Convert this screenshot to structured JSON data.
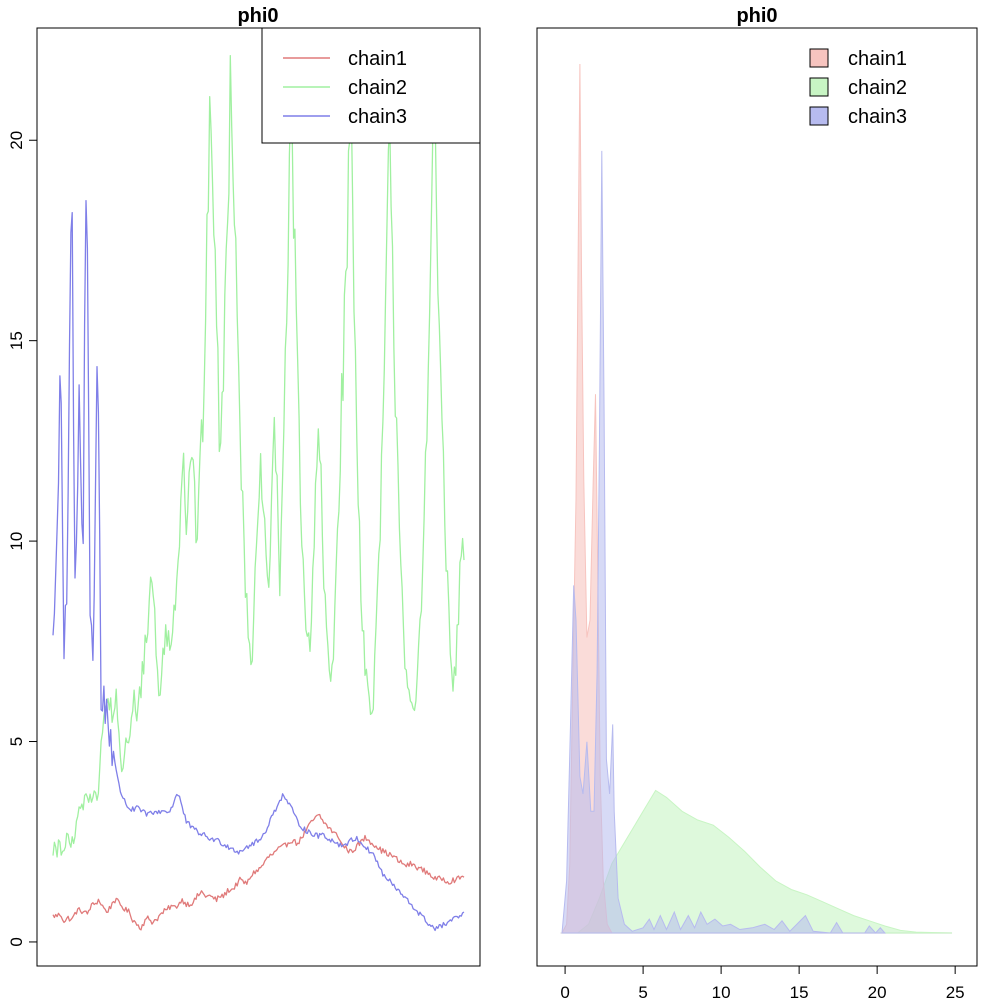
{
  "chart_data": [
    {
      "type": "line",
      "title": "phi0",
      "xlabel": "",
      "ylabel": "",
      "ylim": [
        -0.6,
        22.8
      ],
      "y_ticks": [
        "0",
        "5",
        "10",
        "15",
        "20"
      ],
      "grid": false,
      "x_axis_shown": false,
      "legend": {
        "placement": "top-right",
        "boxed": true,
        "entries": [
          "chain1",
          "chain2",
          "chain3"
        ]
      },
      "series": [
        {
          "name": "chain1",
          "color": "#e07a7a",
          "samples": 300,
          "y": [
            0.65,
            0.65,
            0.7,
            0.5,
            0.6,
            0.55,
            0.75,
            0.8,
            0.75,
            0.7,
            0.9,
            0.95,
            1.05,
            0.9,
            0.75,
            0.85,
            1.05,
            1.0,
            0.9,
            0.8,
            0.75,
            0.55,
            0.45,
            0.35,
            0.5,
            0.6,
            0.5,
            0.55,
            0.65,
            0.75,
            0.8,
            0.9,
            0.85,
            0.95,
            1.05,
            0.95,
            0.95,
            1.0,
            1.15,
            1.25,
            1.15,
            1.15,
            1.1,
            1.05,
            1.15,
            1.15,
            1.3,
            1.3,
            1.4,
            1.55,
            1.5,
            1.45,
            1.65,
            1.75,
            1.8,
            1.9,
            2.05,
            2.15,
            2.2,
            2.3,
            2.35,
            2.4,
            2.5,
            2.55,
            2.45,
            2.55,
            2.7,
            2.85,
            3.0,
            3.1,
            3.15,
            3.0,
            2.9,
            2.8,
            2.7,
            2.65,
            2.4,
            2.35,
            2.25,
            2.3,
            2.4,
            2.5,
            2.6,
            2.55,
            2.45,
            2.4,
            2.3,
            2.25,
            2.2,
            2.15,
            2.1,
            2.0,
            1.95,
            1.9,
            1.95,
            1.9,
            1.85,
            1.8,
            1.75,
            1.7,
            1.6,
            1.55,
            1.6,
            1.55,
            1.5,
            1.55,
            1.55,
            1.6,
            1.65
          ]
        },
        {
          "name": "chain2",
          "color": "#a0f0a0",
          "samples": 300,
          "y": [
            2.3,
            2.4,
            2.1,
            2.5,
            2.2,
            2.4,
            2.3,
            2.6,
            2.5,
            2.4,
            2.6,
            2.7,
            3.0,
            3.5,
            3.2,
            3.4,
            3.6,
            3.8,
            3.6,
            3.7,
            3.9,
            3.5,
            3.7,
            4.2,
            5.0,
            5.5,
            6.0,
            5.8,
            6.2,
            5.5,
            5.8,
            6.3,
            5.2,
            4.8,
            4.3,
            4.6,
            5.0,
            4.7,
            5.2,
            5.6,
            6.0,
            5.5,
            6.2,
            6.0,
            6.8,
            7.2,
            7.5,
            8.0,
            8.8,
            9.2,
            8.5,
            7.0,
            6.5,
            6.2,
            6.8,
            7.5,
            8.0,
            7.5,
            7.0,
            7.8,
            8.5,
            9.0,
            10.0,
            11.0,
            12.3,
            11.5,
            10.5,
            11.5,
            12.5,
            12.0,
            11.0,
            10.0,
            11.0,
            12.0,
            13.0,
            15.0,
            17.0,
            19.0,
            21.5,
            19.0,
            17.0,
            15.0,
            13.0,
            12.0,
            14.0,
            16.0,
            18.0,
            20.0,
            22.0,
            20.0,
            18.0,
            16.0,
            14.0,
            12.0,
            10.0,
            9.0,
            8.5,
            7.5,
            7.0,
            8.0,
            9.0,
            10.0,
            11.0,
            12.0,
            10.5,
            9.5,
            8.5,
            9.5,
            11.0,
            13.0,
            12.0,
            10.5,
            9.0,
            11.0,
            13.0,
            15.0,
            17.0,
            19.0,
            20.5,
            18.0,
            16.0,
            14.0,
            12.0,
            10.0,
            9.0,
            8.0,
            7.5,
            7.0,
            8.5,
            10.0,
            11.5,
            13.0,
            12.0,
            10.0,
            8.5,
            8.0,
            7.0,
            6.5,
            7.0,
            8.0,
            9.5,
            11.0,
            12.5,
            14.0,
            15.5,
            17.0,
            19.0,
            21.0,
            18.0,
            15.5,
            13.0,
            11.0,
            9.0,
            8.0,
            7.0,
            6.5,
            6.0,
            5.5,
            6.0,
            7.0,
            8.0,
            9.5,
            11.0,
            13.0,
            15.0,
            17.5,
            20.0,
            18.0,
            16.0,
            14.0,
            12.5,
            11.0,
            9.5,
            8.0,
            7.0,
            6.5,
            6.0,
            5.7,
            5.5,
            6.0,
            6.5,
            7.5,
            8.5,
            10.0,
            12.0,
            14.0,
            16.5,
            18.5,
            21.0,
            19.0,
            17.0,
            15.0,
            13.0,
            11.5,
            10.0,
            8.5,
            7.5,
            6.5,
            6.3,
            7.0,
            8.0,
            9.0,
            10.0,
            9.5
          ]
        },
        {
          "name": "chain3",
          "color": "#7f7fe8",
          "samples": 300,
          "y": [
            7.7,
            9.3,
            15.3,
            7.2,
            9.5,
            19.9,
            7.5,
            13.8,
            8.8,
            19.9,
            9.0,
            7.3,
            15.5,
            6.0,
            6.0,
            5.5,
            5.0,
            4.3,
            3.8,
            3.6,
            3.4,
            3.3,
            3.3,
            3.35,
            3.25,
            3.2,
            3.2,
            3.2,
            3.25,
            3.25,
            3.3,
            3.2,
            3.35,
            3.6,
            3.7,
            3.3,
            3.0,
            2.9,
            2.8,
            2.75,
            2.7,
            2.65,
            2.6,
            2.55,
            2.55,
            2.5,
            2.45,
            2.4,
            2.35,
            2.3,
            2.25,
            2.3,
            2.35,
            2.4,
            2.45,
            2.5,
            2.55,
            2.7,
            2.9,
            3.1,
            3.3,
            3.5,
            3.65,
            3.55,
            3.4,
            3.2,
            3.0,
            2.9,
            2.8,
            2.75,
            2.7,
            2.65,
            2.65,
            2.7,
            2.6,
            2.55,
            2.5,
            2.45,
            2.4,
            2.45,
            2.5,
            2.55,
            2.6,
            2.5,
            2.4,
            2.3,
            2.25,
            2.1,
            1.9,
            1.7,
            1.6,
            1.5,
            1.4,
            1.3,
            1.2,
            1.1,
            1.0,
            0.9,
            0.8,
            0.7,
            0.6,
            0.5,
            0.4,
            0.35,
            0.35,
            0.4,
            0.45,
            0.5,
            0.55,
            0.6,
            0.65,
            0.7
          ]
        }
      ]
    },
    {
      "type": "area",
      "title": "phi0",
      "xlabel": "",
      "ylabel": "",
      "xlim": [
        -1.8,
        26.4
      ],
      "x_ticks": [
        "0",
        "5",
        "10",
        "15",
        "20",
        "25"
      ],
      "y_axis_shown": false,
      "grid": false,
      "legend": {
        "placement": "top-right",
        "boxed": false,
        "entries": [
          "chain1",
          "chain2",
          "chain3"
        ]
      },
      "series": [
        {
          "name": "chain1",
          "fill": "#f7c4bf",
          "points": [
            [
              -0.2,
              0
            ],
            [
              0.1,
              0.05
            ],
            [
              0.3,
              0.4
            ],
            [
              0.5,
              1.5
            ],
            [
              0.7,
              2.5
            ],
            [
              0.85,
              4.0
            ],
            [
              0.95,
              5.0
            ],
            [
              1.05,
              3.8
            ],
            [
              1.2,
              2.6
            ],
            [
              1.4,
              1.7
            ],
            [
              1.6,
              1.8
            ],
            [
              1.8,
              2.6
            ],
            [
              1.95,
              3.1
            ],
            [
              2.1,
              2.0
            ],
            [
              2.25,
              0.9
            ],
            [
              2.45,
              0.3
            ],
            [
              2.7,
              0.05
            ],
            [
              3.0,
              0
            ]
          ]
        },
        {
          "name": "chain2",
          "fill": "#c8f5c4",
          "points": [
            [
              0.8,
              0
            ],
            [
              1.5,
              0.05
            ],
            [
              2.2,
              0.2
            ],
            [
              3.0,
              0.4
            ],
            [
              4.0,
              0.55
            ],
            [
              5.0,
              0.7
            ],
            [
              5.8,
              0.82
            ],
            [
              6.5,
              0.78
            ],
            [
              7.5,
              0.7
            ],
            [
              8.5,
              0.65
            ],
            [
              9.5,
              0.62
            ],
            [
              10.5,
              0.55
            ],
            [
              11.5,
              0.47
            ],
            [
              12.5,
              0.38
            ],
            [
              13.5,
              0.3
            ],
            [
              14.5,
              0.25
            ],
            [
              15.5,
              0.22
            ],
            [
              16.5,
              0.18
            ],
            [
              17.5,
              0.14
            ],
            [
              18.5,
              0.1
            ],
            [
              19.5,
              0.07
            ],
            [
              20.5,
              0.04
            ],
            [
              21.5,
              0.015
            ],
            [
              22.5,
              0.005
            ],
            [
              24.8,
              0
            ]
          ]
        },
        {
          "name": "chain3",
          "fill": "#b7bbef",
          "points": [
            [
              -0.2,
              0
            ],
            [
              0.1,
              0.3
            ],
            [
              0.35,
              1.2
            ],
            [
              0.55,
              2.0
            ],
            [
              0.7,
              1.8
            ],
            [
              0.95,
              0.9
            ],
            [
              1.15,
              0.8
            ],
            [
              1.4,
              1.1
            ],
            [
              1.65,
              0.7
            ],
            [
              1.85,
              0.7
            ],
            [
              2.05,
              1.5
            ],
            [
              2.2,
              2.8
            ],
            [
              2.35,
              4.5
            ],
            [
              2.5,
              3.0
            ],
            [
              2.65,
              1.0
            ],
            [
              2.85,
              0.8
            ],
            [
              3.05,
              1.2
            ],
            [
              3.15,
              0.7
            ],
            [
              3.4,
              0.2
            ],
            [
              3.8,
              0.05
            ],
            [
              4.3,
              0.01
            ],
            [
              5.0,
              0.03
            ],
            [
              5.4,
              0.08
            ],
            [
              5.7,
              0.02
            ],
            [
              6.1,
              0.1
            ],
            [
              6.5,
              0.02
            ],
            [
              7.0,
              0.12
            ],
            [
              7.4,
              0.02
            ],
            [
              7.9,
              0.1
            ],
            [
              8.3,
              0.03
            ],
            [
              8.7,
              0.12
            ],
            [
              9.1,
              0.05
            ],
            [
              9.6,
              0.08
            ],
            [
              10.1,
              0.04
            ],
            [
              10.6,
              0.05
            ],
            [
              11.2,
              0.02
            ],
            [
              12.0,
              0.03
            ],
            [
              12.8,
              0.05
            ],
            [
              13.4,
              0.02
            ],
            [
              13.9,
              0.07
            ],
            [
              14.4,
              0.01
            ],
            [
              15.4,
              0.1
            ],
            [
              15.9,
              0.01
            ],
            [
              17.0,
              0
            ],
            [
              17.4,
              0.06
            ],
            [
              17.8,
              0
            ],
            [
              19.2,
              0
            ],
            [
              19.5,
              0.04
            ],
            [
              19.9,
              0
            ],
            [
              20.2,
              0.03
            ],
            [
              20.5,
              0
            ]
          ]
        }
      ]
    }
  ]
}
